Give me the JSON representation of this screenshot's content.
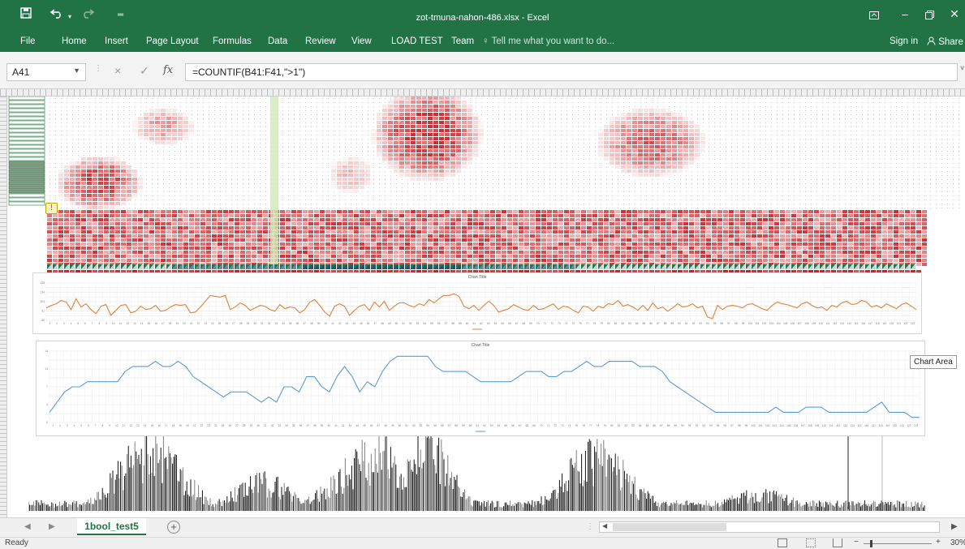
{
  "window": {
    "title": "zot-tmuna-nahon-486.xlsx - Excel",
    "qat": {
      "save_icon": "save-icon",
      "undo_icon": "undo-icon",
      "redo_icon": "redo-icon",
      "customize_icon": "customize-icon"
    },
    "controls": {
      "ribbon_display_icon": "ribbon-display-icon",
      "minimize_icon": "minimize-icon",
      "restore_icon": "restore-icon",
      "close_icon": "close-icon"
    }
  },
  "ribbon": {
    "tabs": [
      "File",
      "Home",
      "Insert",
      "Page Layout",
      "Formulas",
      "Data",
      "Review",
      "View",
      "LOAD TEST",
      "Team"
    ],
    "tell_me": "Tell me what you want to do...",
    "sign_in": "Sign in",
    "share": "Share",
    "accent": "#217346"
  },
  "formula_bar": {
    "name_box": "A41",
    "cancel_symbol": "×",
    "enter_symbol": "✓",
    "fx_symbol": "fx",
    "formula": "=COUNTIF(B41:F41,\">1\")"
  },
  "charts": [
    {
      "title": "Chart Title",
      "chart_data": {
        "type": "line",
        "color": "#e0823a",
        "values": [
          95,
          98,
          100,
          104,
          102,
          93,
          106,
          96,
          100,
          93,
          88,
          97,
          99,
          86,
          92,
          98,
          99,
          89,
          91,
          97,
          93,
          94,
          98,
          91,
          92,
          96,
          99,
          98,
          99,
          89,
          90,
          96,
          103,
          110,
          109,
          108,
          110,
          93,
          96,
          101,
          98,
          92,
          95,
          98,
          97,
          93,
          91,
          99,
          94,
          96,
          95,
          89,
          93,
          102,
          105,
          98,
          90,
          85,
          97,
          100,
          97,
          86,
          92,
          97,
          99,
          92,
          102,
          96,
          103,
          92,
          97,
          101,
          101,
          98,
          96,
          100,
          98,
          105,
          101,
          106,
          110,
          110,
          112,
          109,
          97,
          94,
          98,
          92,
          98,
          103,
          98,
          90,
          92,
          94,
          99,
          96,
          93,
          92,
          98,
          93,
          94,
          97,
          100,
          93,
          97,
          96,
          92,
          89,
          97,
          96,
          91,
          97,
          95,
          100,
          99,
          104,
          97,
          99,
          96,
          92,
          98,
          92,
          101,
          94,
          96,
          91,
          95,
          100,
          96,
          97,
          100,
          95,
          97,
          84,
          82,
          98,
          93,
          97,
          98,
          97,
          95,
          99,
          100,
          97,
          94,
          92,
          98,
          102,
          100,
          99,
          97,
          95,
          100,
          102,
          98,
          95,
          96,
          92,
          98,
          96,
          101,
          103,
          99,
          100,
          104,
          102,
          96,
          98,
          95,
          100,
          97,
          94,
          99,
          101,
          97,
          93
        ],
        "ylim": [
          80,
          125
        ],
        "x_ticks_count": 123
      }
    },
    {
      "title": "Chart Title",
      "chart_data": {
        "type": "line",
        "color": "#5b9bd5",
        "values": [
          2,
          4,
          6,
          7,
          7,
          8,
          8,
          8,
          8,
          8,
          10,
          11,
          11,
          11,
          12,
          11,
          11,
          12,
          11,
          9,
          8,
          7,
          6,
          5,
          6,
          6,
          6,
          5,
          4,
          5,
          4,
          7,
          7,
          6,
          9,
          9,
          7,
          6,
          9,
          11,
          9,
          6,
          8,
          7,
          10,
          12,
          13,
          13,
          13,
          13,
          13,
          11,
          10,
          10,
          10,
          10,
          9,
          8,
          8,
          8,
          8,
          8,
          9,
          10,
          10,
          10,
          9,
          9,
          10,
          10,
          11,
          12,
          11,
          11,
          12,
          12,
          12,
          12,
          11,
          11,
          11,
          10,
          8,
          7,
          6,
          5,
          4,
          3,
          2,
          2,
          2,
          2,
          2,
          2,
          2,
          2,
          3,
          2,
          2,
          2,
          3,
          3,
          3,
          2,
          2,
          2,
          2,
          2,
          2,
          3,
          4,
          2,
          2,
          2,
          1,
          1
        ],
        "ylim": [
          0,
          14
        ],
        "x_ticks_count": 123
      }
    }
  ],
  "tooltip": "Chart Area",
  "sheet_tabs": {
    "active": "1bool_test5",
    "prev_icon": "chevron-left-icon",
    "next_icon": "chevron-right-icon",
    "add_symbol": "+"
  },
  "status": {
    "ready": "Ready",
    "zoom": "30%",
    "zoom_minus": "−",
    "zoom_plus": "+"
  },
  "heatmap": {
    "low_color": "#ffffff",
    "high_color": "#c8102e"
  }
}
